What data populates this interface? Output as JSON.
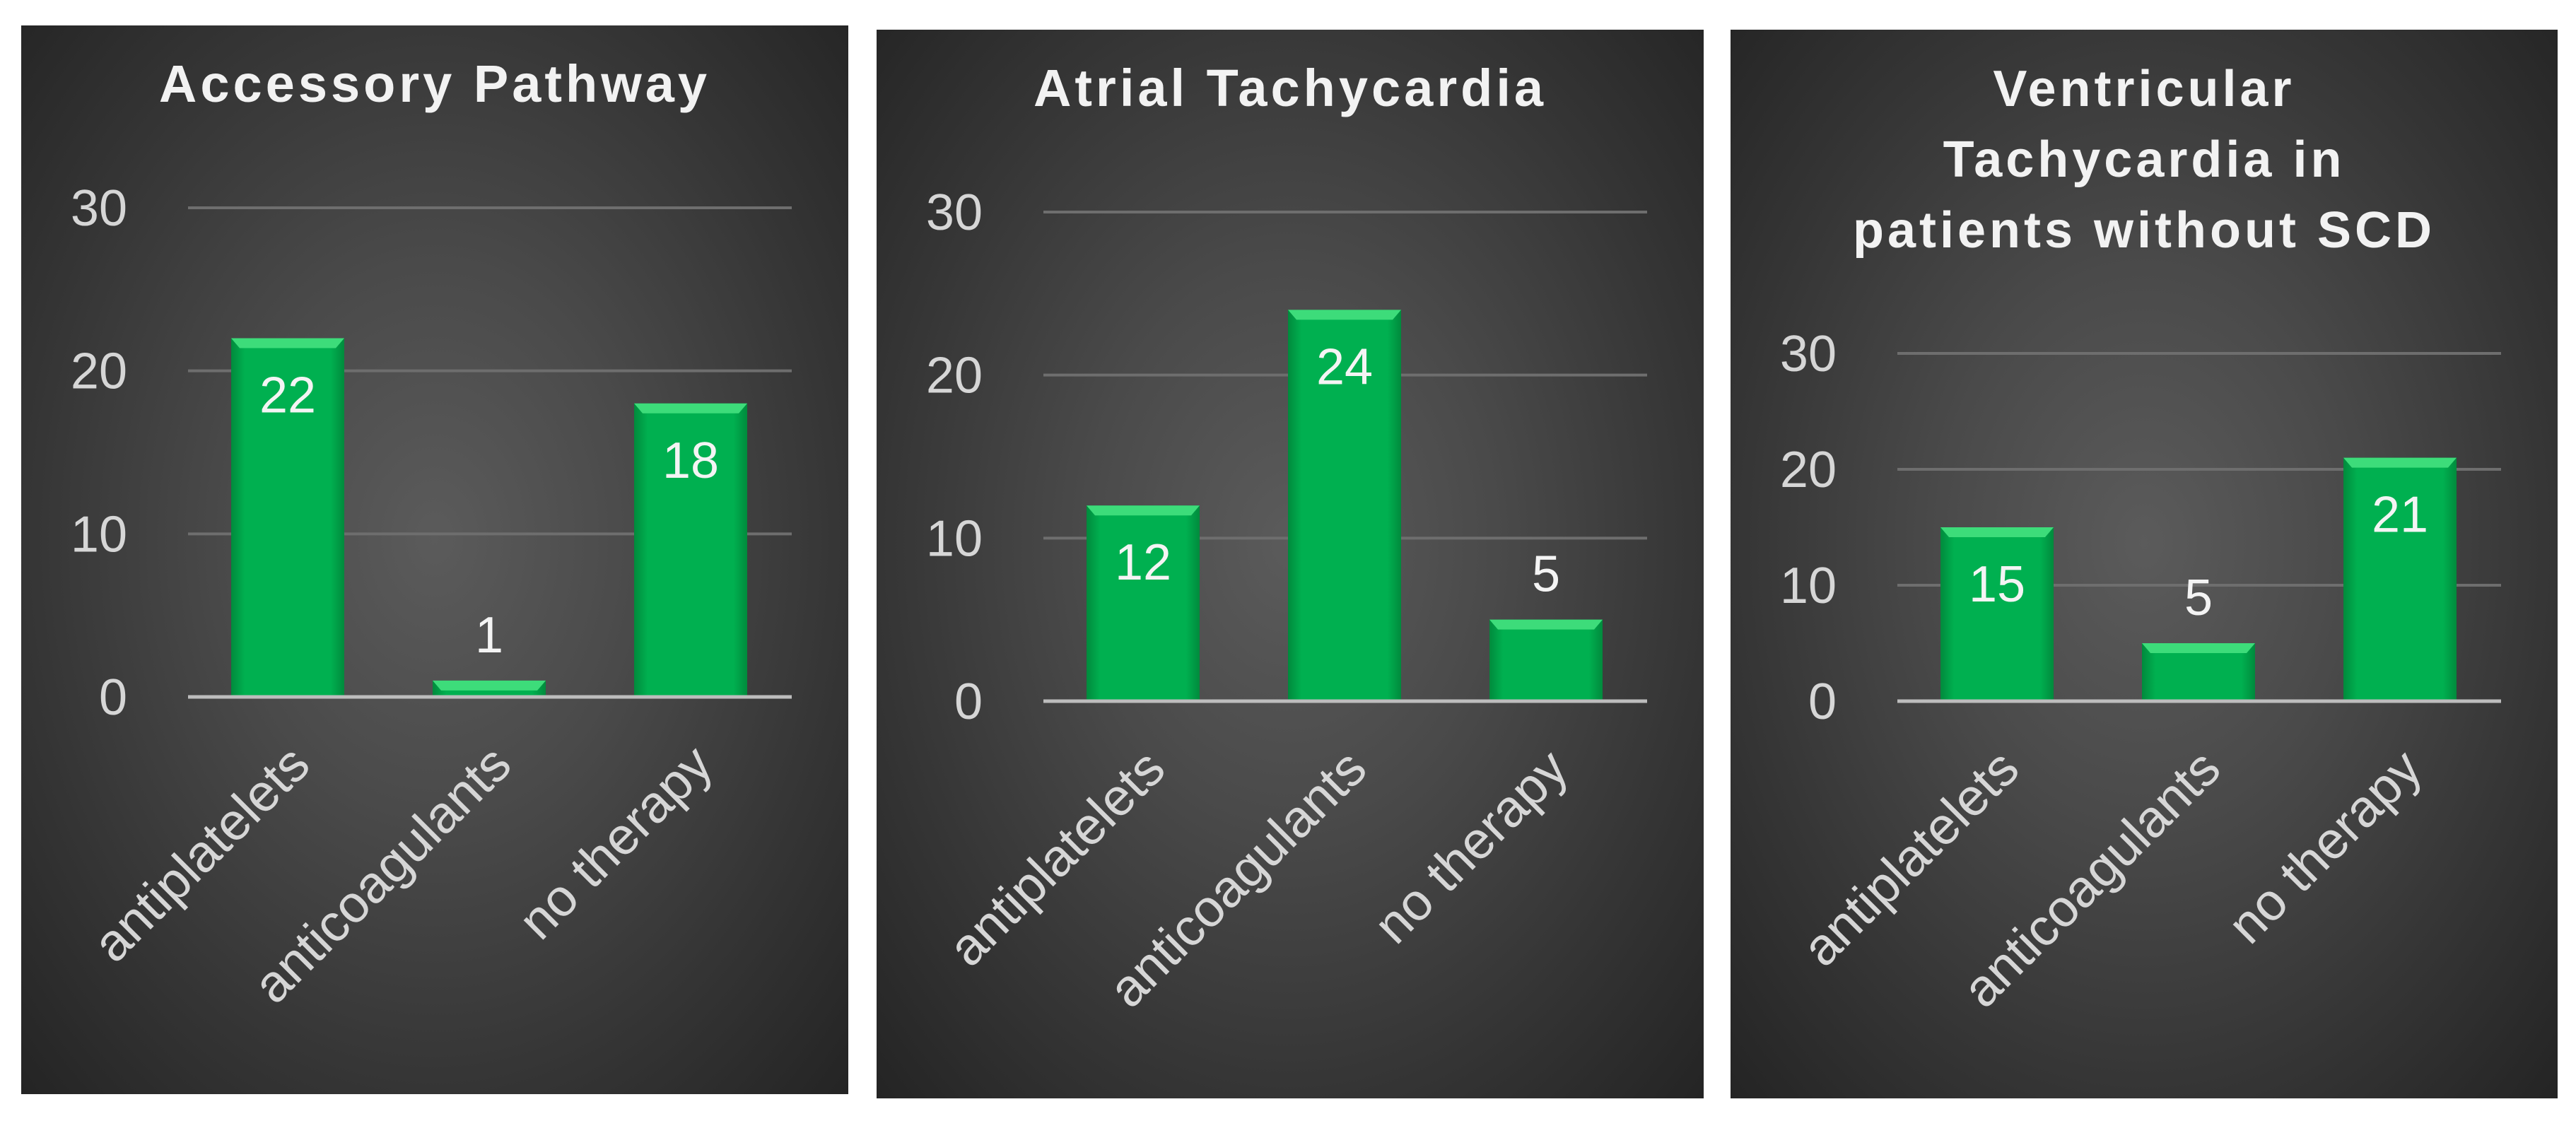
{
  "chart_data": [
    {
      "type": "bar",
      "title": "Accessory Pathway",
      "categories": [
        "antiplatelets",
        "anticoagulants",
        "no therapy"
      ],
      "values": [
        22,
        1,
        18
      ],
      "ylim": [
        0,
        30
      ],
      "yticks": [
        "0",
        "10",
        "20",
        "30"
      ],
      "grid": true,
      "legend": "none"
    },
    {
      "type": "bar",
      "title": "Atrial Tachycardia",
      "categories": [
        "antiplatelets",
        "anticoagulants",
        "no therapy"
      ],
      "values": [
        12,
        24,
        5
      ],
      "ylim": [
        0,
        30
      ],
      "yticks": [
        "0",
        "10",
        "20",
        "30"
      ],
      "grid": true,
      "legend": "none"
    },
    {
      "type": "bar",
      "title": [
        "Ventricular",
        "Tachycardia in",
        "patients without SCD"
      ],
      "categories": [
        "antiplatelets",
        "anticoagulants",
        "no therapy"
      ],
      "values": [
        15,
        5,
        21
      ],
      "ylim": [
        0,
        30
      ],
      "yticks": [
        "0",
        "10",
        "20",
        "30"
      ],
      "grid": true,
      "legend": "none"
    }
  ],
  "colors": {
    "bar": "#00b050",
    "bar_top": "#3ddc7a",
    "bar_edge": "#008a3c",
    "panel_background": "#3e3e3e",
    "text": "#d6d6d6"
  }
}
